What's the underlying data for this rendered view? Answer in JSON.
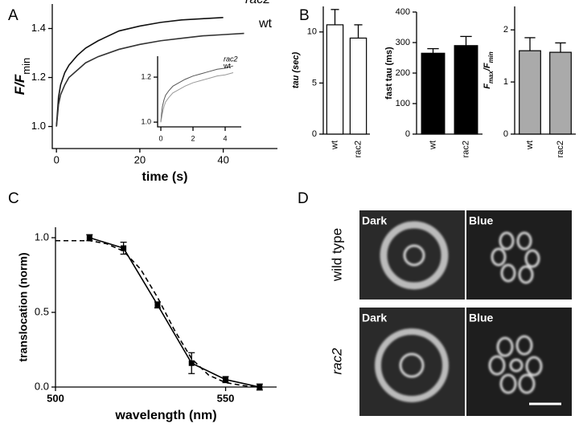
{
  "panel_labels": [
    "A",
    "B",
    "C",
    "D"
  ],
  "chart_data": [
    {
      "type": "line",
      "ylabel": {
        "main": "F/F",
        "sub": "min"
      },
      "xlabel": "time (s)",
      "xlim": [
        -1,
        53
      ],
      "ylim": [
        0.91,
        1.5
      ],
      "xticks": [
        0,
        20,
        40
      ],
      "yticks": [
        {
          "value": 1,
          "label": "1.0"
        },
        {
          "value": 1.2,
          "label": "1.2"
        },
        {
          "value": 1.4,
          "label": "1.4"
        }
      ],
      "x": [
        0,
        0.5,
        1,
        2,
        3,
        5,
        7,
        10,
        15,
        20,
        25,
        30,
        35,
        40,
        45
      ],
      "series": [
        {
          "name": "rac2",
          "color": "#111111",
          "values": [
            1.0,
            1.12,
            1.17,
            1.22,
            1.25,
            1.29,
            1.32,
            1.35,
            1.39,
            1.41,
            1.425,
            1.435,
            1.44,
            1.445,
            null
          ]
        },
        {
          "name": "wt",
          "color": "#333333",
          "values": [
            1.0,
            1.09,
            1.13,
            1.17,
            1.2,
            1.23,
            1.26,
            1.285,
            1.315,
            1.335,
            1.35,
            1.36,
            1.37,
            1.375,
            1.38
          ]
        }
      ]
    },
    {
      "type": "line",
      "xlim": [
        -0.2,
        5
      ],
      "ylim": [
        0.979,
        1.293
      ],
      "xticks": [
        0,
        2,
        4
      ],
      "yticks": [
        {
          "value": 1,
          "label": "1.0"
        },
        {
          "value": 1.2,
          "label": "1.2"
        }
      ],
      "x": [
        0,
        0.05,
        0.1,
        0.2,
        0.3,
        0.5,
        0.75,
        1,
        1.5,
        2,
        2.5,
        3,
        3.5,
        4,
        4.5
      ],
      "series": [
        {
          "name": "rac2",
          "color": "#555555",
          "values": [
            1.0,
            1.04,
            1.07,
            1.1,
            1.12,
            1.14,
            1.16,
            1.17,
            1.19,
            1.205,
            1.215,
            1.225,
            1.235,
            1.24,
            1.25
          ]
        },
        {
          "name": "wt",
          "color": "#999999",
          "values": [
            1.0,
            1.02,
            1.04,
            1.07,
            1.09,
            1.11,
            1.13,
            1.14,
            1.16,
            1.175,
            1.185,
            1.195,
            1.205,
            1.21,
            1.22
          ]
        }
      ]
    },
    {
      "type": "bar",
      "ylabel": "tau (sec)",
      "categories": [
        "wt",
        "rac2"
      ],
      "values": [
        10.7,
        9.4
      ],
      "errors": [
        1.5,
        1.3
      ],
      "color": "#ffffff",
      "ylim": [
        0,
        12.5
      ],
      "yticks": [
        0,
        5,
        10
      ]
    },
    {
      "type": "bar",
      "ylabel": "fast tau (ms)",
      "categories": [
        "wt",
        "rac2"
      ],
      "values": [
        265,
        290
      ],
      "errors": [
        15,
        30
      ],
      "color": "#000000",
      "ylim": [
        0,
        400
      ],
      "yticks": [
        0,
        100,
        200,
        300,
        400
      ]
    },
    {
      "type": "bar",
      "ylabel": {
        "main": "F",
        "sub": "max",
        "mid": "/F",
        "sub2": "min"
      },
      "categories": [
        "wt",
        "rac2"
      ],
      "values": [
        1.6,
        1.57
      ],
      "errors": [
        0.25,
        0.18
      ],
      "color": "#aaaaaa",
      "ylim": [
        0,
        2.45
      ],
      "yticks": [
        0,
        1,
        2
      ]
    },
    {
      "type": "line",
      "ylabel": "translocation (norm)",
      "xlabel": "wavelength (nm)",
      "xlim": [
        500,
        565
      ],
      "ylim": [
        0,
        1.07
      ],
      "xticks": [
        500,
        550
      ],
      "yticks": [
        {
          "value": 0,
          "label": "0.0"
        },
        {
          "value": 0.5,
          "label": "0.5"
        },
        {
          "value": 1,
          "label": "1.0"
        }
      ],
      "series": [
        {
          "color": "#000000",
          "x": [
            510,
            520,
            530,
            540,
            550,
            560
          ],
          "values": [
            1.0,
            0.93,
            0.55,
            0.16,
            0.05,
            0.0
          ],
          "errors": [
            0.02,
            0.04,
            0.02,
            0.07,
            0.02,
            0.02
          ]
        },
        {
          "color": "#000000",
          "dashed": true,
          "x": [
            500,
            510,
            515,
            520,
            525,
            530,
            535,
            540,
            545,
            550,
            555,
            560
          ],
          "values": [
            0.98,
            0.98,
            0.96,
            0.91,
            0.79,
            0.6,
            0.38,
            0.19,
            0.08,
            0.03,
            0.01,
            0.0
          ]
        }
      ]
    }
  ],
  "panel_d": {
    "rows": [
      "wild type",
      "rac2"
    ],
    "tiles": [
      "Dark",
      "Blue",
      "Dark",
      "Blue"
    ]
  }
}
